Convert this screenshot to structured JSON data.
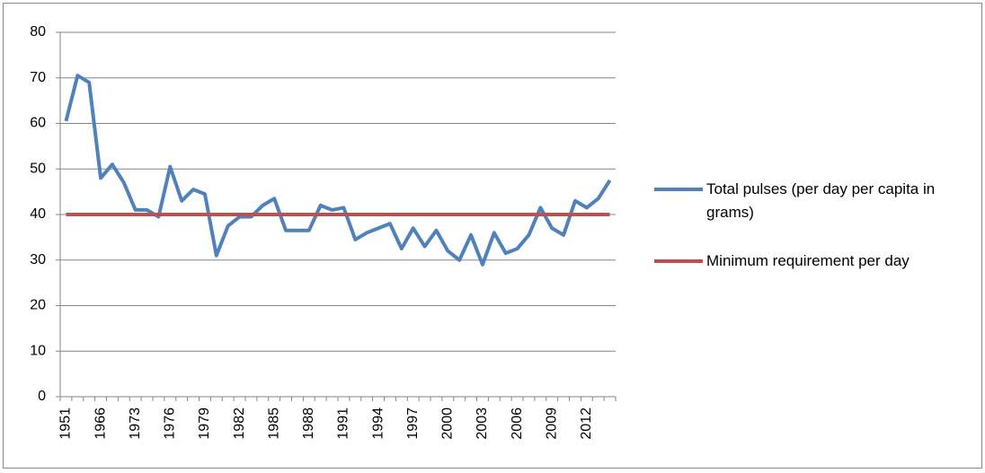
{
  "chart_data": {
    "type": "line",
    "categories": [
      "1951",
      null,
      null,
      "1966",
      null,
      null,
      "1973",
      null,
      null,
      "1976",
      null,
      null,
      "1979",
      null,
      null,
      "1982",
      null,
      null,
      "1985",
      null,
      null,
      "1988",
      null,
      null,
      "1991",
      null,
      null,
      "1994",
      null,
      null,
      "1997",
      null,
      null,
      "2000",
      null,
      null,
      "2003",
      null,
      null,
      "2006",
      null,
      null,
      "2009",
      null,
      null,
      "2012",
      null,
      null
    ],
    "series": [
      {
        "name": "Total pulses (per day per capita in grams)",
        "color": "#4f81bd",
        "values": [
          60.5,
          70.5,
          69,
          48,
          51,
          47,
          41,
          41,
          39.5,
          50.5,
          43,
          45.5,
          44.5,
          31,
          37.5,
          39.5,
          39.5,
          42,
          43.5,
          36.5,
          36.5,
          36.5,
          42,
          41,
          41.5,
          34.5,
          36,
          37,
          38,
          32.5,
          37,
          33,
          36.5,
          32,
          30,
          35.5,
          29,
          36,
          31.5,
          32.5,
          35.5,
          41.5,
          37,
          35.5,
          43,
          41.5,
          43.5,
          47.5
        ]
      },
      {
        "name": "Minimum requirement per day",
        "color": "#c0504d",
        "values": [
          40,
          40,
          40,
          40,
          40,
          40,
          40,
          40,
          40,
          40,
          40,
          40,
          40,
          40,
          40,
          40,
          40,
          40,
          40,
          40,
          40,
          40,
          40,
          40,
          40,
          40,
          40,
          40,
          40,
          40,
          40,
          40,
          40,
          40,
          40,
          40,
          40,
          40,
          40,
          40,
          40,
          40,
          40,
          40,
          40,
          40,
          40,
          40
        ]
      }
    ],
    "ylim": [
      0,
      80
    ],
    "yticks": [
      0,
      10,
      20,
      30,
      40,
      50,
      60,
      70,
      80
    ],
    "grid": true,
    "legend": "right"
  }
}
